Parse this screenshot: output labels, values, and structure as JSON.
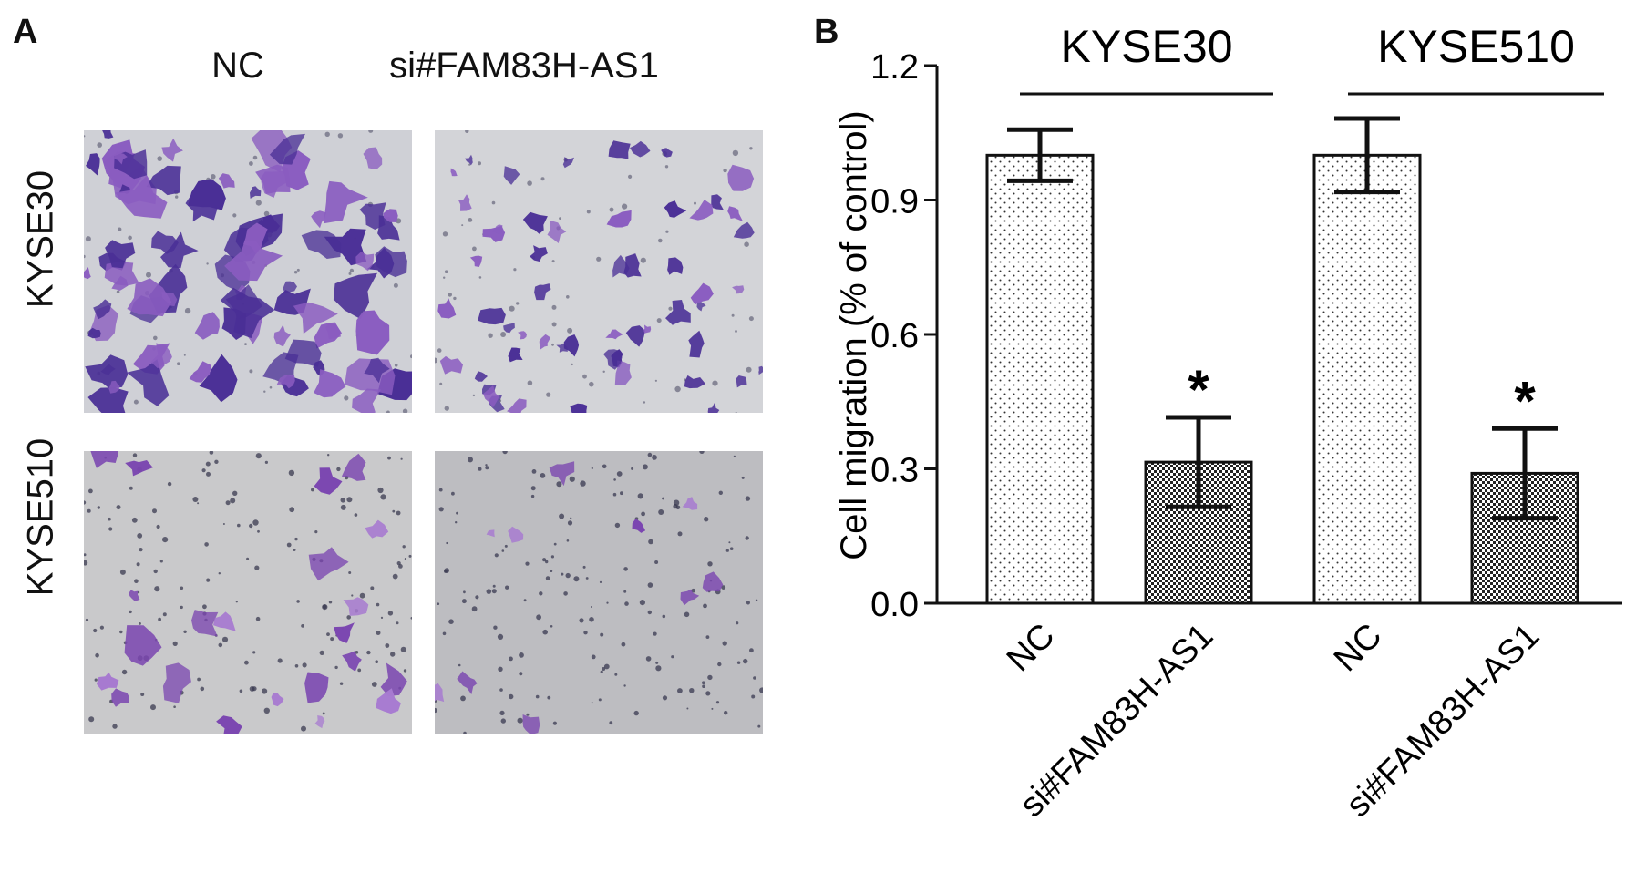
{
  "panel_a": {
    "letter": "A",
    "columns": [
      "NC",
      "si#FAM83H-AS1"
    ],
    "rows": [
      "KYSE30",
      "KYSE510"
    ]
  },
  "panel_b": {
    "letter": "B"
  },
  "colors": {
    "bar_fill": "#ffffff",
    "stroke": "#111111",
    "stain_dark": "#4a2f96",
    "stain_light": "#8a5cc0",
    "background_gray": "#c9c9cb"
  },
  "chart_data": {
    "type": "bar",
    "ylabel": "Cell migration (% of control)",
    "ylim": [
      0,
      1.2
    ],
    "yticks": [
      0.0,
      0.3,
      0.6,
      0.9,
      1.2
    ],
    "ytick_labels": [
      "0.0",
      "0.3",
      "0.6",
      "0.9",
      "1.2"
    ],
    "groups": [
      {
        "name": "KYSE30",
        "categories": [
          "NC",
          "si#FAM83H-AS1"
        ],
        "values": [
          1.0,
          0.315
        ],
        "errors": [
          0.057,
          0.1
        ],
        "significance": [
          "",
          "*"
        ],
        "patterns": [
          "sparse-dots",
          "dense-checker"
        ]
      },
      {
        "name": "KYSE510",
        "categories": [
          "NC",
          "si#FAM83H-AS1"
        ],
        "values": [
          1.0,
          0.29
        ],
        "errors": [
          0.082,
          0.1
        ],
        "significance": [
          "",
          "*"
        ],
        "patterns": [
          "sparse-dots",
          "dense-checker"
        ]
      }
    ],
    "grid": false,
    "legend": "none"
  }
}
